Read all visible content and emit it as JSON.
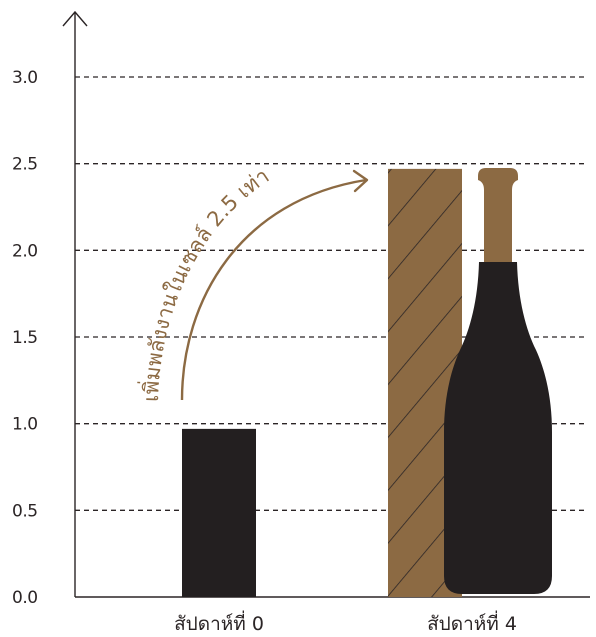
{
  "chart_data": {
    "type": "bar",
    "title": "",
    "xlabel": "",
    "ylabel": "",
    "ylim": [
      0,
      3.0
    ],
    "yticks": [
      "0.0",
      "0.5",
      "1.0",
      "1.5",
      "2.0",
      "2.5",
      "3.0"
    ],
    "categories": [
      "สัปดาห์ที่ 0",
      "สัปดาห์ที่ 4"
    ],
    "values": [
      0.97,
      2.47
    ],
    "grid": true,
    "annotation": "เพิ่มพลังงานในเซลล์ 2.5 เท่า",
    "colors": {
      "bar_week0": "#231f20",
      "bar_week4": "#8c6a43",
      "hatch": "#2b2526",
      "bottle_body": "#231f20",
      "bottle_neck": "#8c6a43",
      "annotation": "#8c6a43",
      "axis": "#2b2526"
    }
  }
}
